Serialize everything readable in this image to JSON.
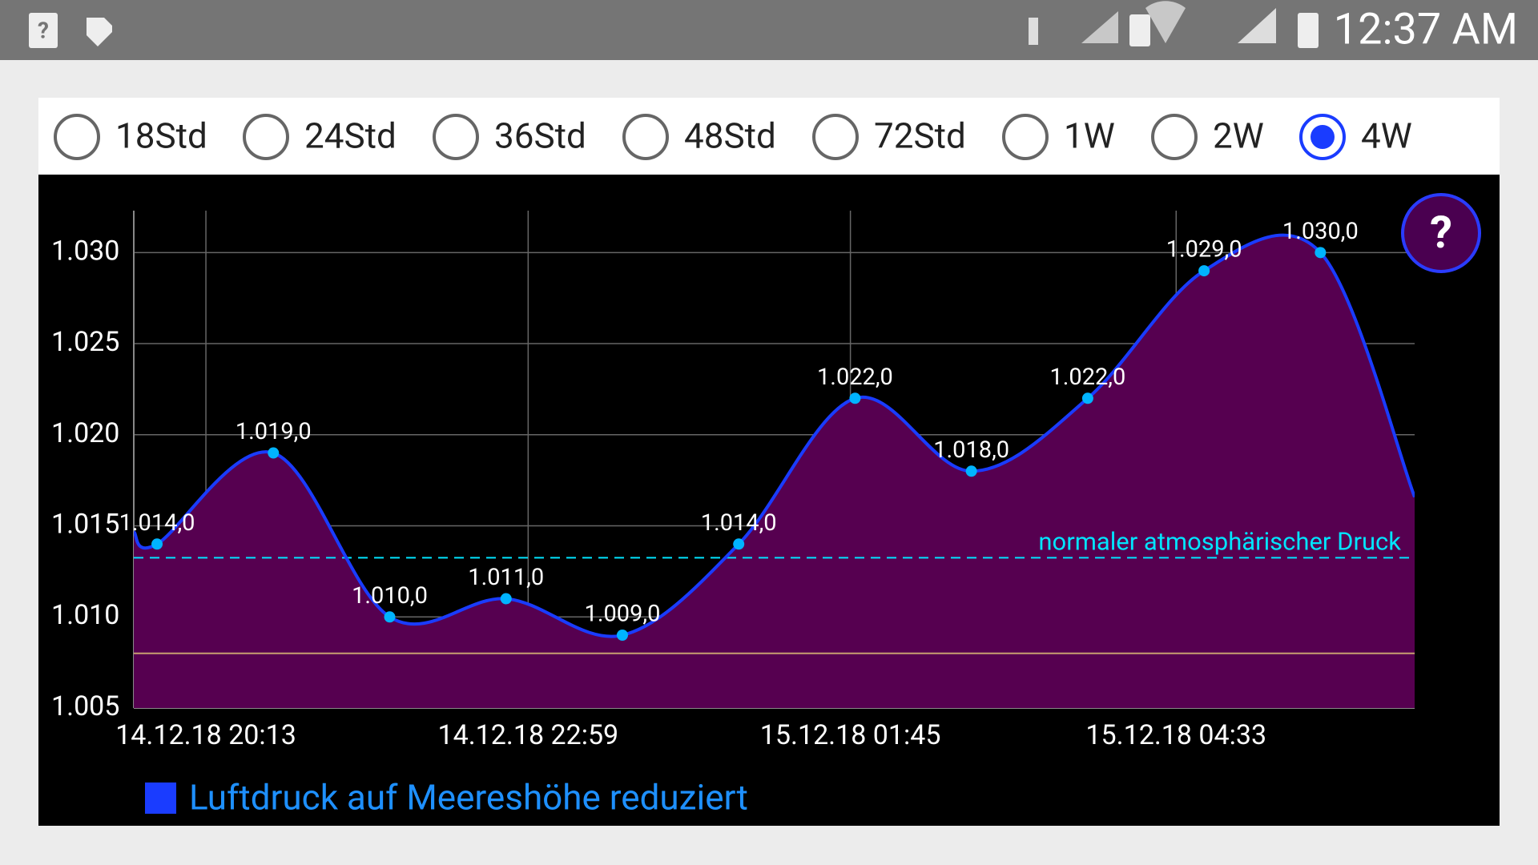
{
  "status_bar": {
    "time": "12:37 AM"
  },
  "range_selector": {
    "options": [
      "18Std",
      "24Std",
      "36Std",
      "48Std",
      "72Std",
      "1W",
      "2W",
      "4W"
    ],
    "selected": 7
  },
  "help_button": {
    "label": "?"
  },
  "chart_data": {
    "type": "line",
    "x": [
      -0.2,
      0,
      1,
      2,
      3,
      4,
      5,
      6,
      7,
      8,
      9,
      10,
      10.81
    ],
    "series": [
      {
        "name": "Luftdruck auf Meereshöhe reduziert",
        "color": "#1a3cff",
        "fill": "#560050",
        "marker_color": "#00b4ff",
        "values": [
          1014.67,
          1014,
          1019,
          1010,
          1011,
          1009,
          1014,
          1022,
          1018,
          1022,
          1029,
          1030,
          1016.58
        ],
        "value_labels": [
          null,
          "1.014,0",
          "1.019,0",
          "1.010,0",
          "1.011,0",
          "1.009,0",
          "1.014,0",
          "1.022,0",
          "1.018,0",
          "1.022,0",
          "1.029,0",
          "1.030,0",
          null
        ]
      }
    ],
    "xlim": [
      -0.2,
      10.81
    ],
    "xticks": [
      {
        "value": 0.42,
        "label": "14.12.18 20:13"
      },
      {
        "value": 3.19,
        "label": "14.12.18 22:59"
      },
      {
        "value": 5.96,
        "label": "15.12.18 01:45"
      },
      {
        "value": 8.76,
        "label": "15.12.18 04:33"
      }
    ],
    "ylim": [
      1005,
      1032.3
    ],
    "yticks": [
      {
        "value": 1005,
        "label": "1.005"
      },
      {
        "value": 1010,
        "label": "1.010"
      },
      {
        "value": 1015,
        "label": "1.015"
      },
      {
        "value": 1020,
        "label": "1.020"
      },
      {
        "value": 1025,
        "label": "1.025"
      },
      {
        "value": 1030,
        "label": "1.030"
      }
    ],
    "reference_lines": [
      {
        "value": 1013.25,
        "label": "normaler atmosphärischer Druck",
        "color": "#00e5ff",
        "dashed": true
      },
      {
        "value": 1008,
        "color": "#c8a070",
        "dashed": false
      }
    ],
    "grid": true,
    "legend": "bottom-left"
  }
}
